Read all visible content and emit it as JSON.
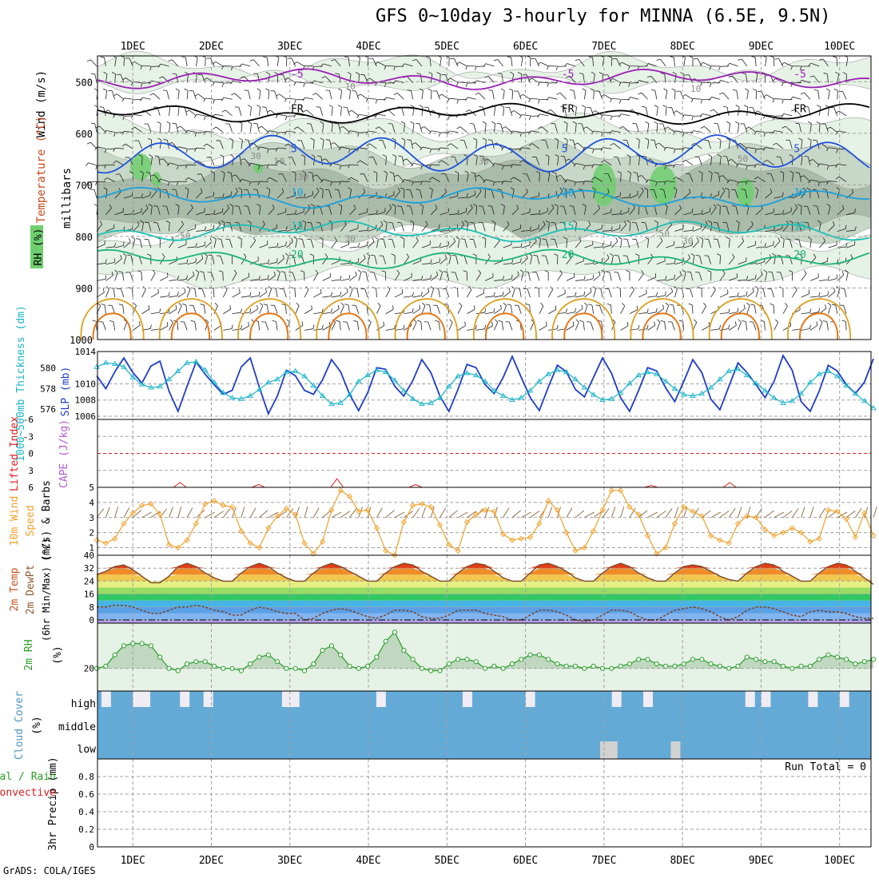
{
  "title": "GFS 0~10day 3-hourly for MINNA (6.5E, 9.5N)",
  "credit": "GrADS: COLA/IGES",
  "colors": {
    "grid": "#a0a0a0",
    "rh_light": "#e6f2e6",
    "rh_mid": "#c8d8c8",
    "rh_dark": "#a9bba9",
    "rh_wet": "#6fcf6f",
    "purple": "#9a1fb4",
    "blue": "#1e50dc",
    "cyan": "#19a0dc",
    "teal": "#19c0b4",
    "green": "#19b478",
    "gold": "#dca01e",
    "orange": "#e67814",
    "magenta": "#c8148c",
    "slp": "#1e3cc8",
    "thick": "#19b4c8",
    "li_red": "#dc1e1e",
    "wind_orange": "#f0a028",
    "barb_brown": "#8c643c",
    "rh2m": "#28a028",
    "cloud": "#64aad7",
    "cloud_clear": "#f0ecf4",
    "cloud_low": "#d2d2d2",
    "precip_green": "#28a028",
    "precip_red": "#dc1e1e"
  },
  "chart_data": [
    {
      "type": "heatmap",
      "panel": "upper-air",
      "x_ticks": [
        "1DEC",
        "2DEC",
        "3DEC",
        "4DEC",
        "5DEC",
        "6DEC",
        "7DEC",
        "8DEC",
        "9DEC",
        "10DEC"
      ],
      "ylabel": "millibars",
      "yticks": [
        "500",
        "600",
        "700",
        "800",
        "900",
        "1000"
      ],
      "ylim": [
        1000,
        450
      ],
      "left_labels": [
        "Wind (m/s)",
        "Temperature (°C)",
        "RH (%)"
      ],
      "temp_labels": [
        "-5",
        "FR",
        "5",
        "10",
        "15",
        "20"
      ],
      "rh_labels": [
        "10",
        "30",
        "50",
        "50",
        "30",
        "30",
        "10",
        "30",
        "50",
        "50",
        "30"
      ],
      "freezing_level_label": "FR",
      "isotherms": [
        {
          "label": "-5",
          "level": 495
        },
        {
          "label": "FR",
          "level": 562
        },
        {
          "label": "5",
          "level": 640
        },
        {
          "label": "10",
          "level": 725
        },
        {
          "label": "15",
          "level": 790
        },
        {
          "label": "20",
          "level": 845
        }
      ]
    },
    {
      "type": "line",
      "panel": "slp-thickness",
      "ylabel_left": "1000~500mb Thickness (dm)",
      "ylabel_right": "SLP (mb)",
      "yticks_left": [
        "580",
        "578",
        "576"
      ],
      "yticks_right": [
        "1014",
        "1010",
        "1008",
        "1006"
      ],
      "ylim_slp": [
        1005.6,
        1014
      ],
      "ylim_thick": [
        575,
        581.6
      ],
      "series": [
        {
          "name": "SLP (mb)",
          "values": [
            1011.0,
            1009.4,
            1011.5,
            1013.2,
            1011.4,
            1010.1,
            1012.2,
            1012.8,
            1009.1,
            1006.6,
            1009.7,
            1012.7,
            1011.2,
            1009.9,
            1008.7,
            1009.2,
            1012.1,
            1013.2,
            1009.6,
            1006.3,
            1008.5,
            1011.7,
            1011.0,
            1009.2,
            1008.7,
            1010.5,
            1013.0,
            1011.5,
            1008.7,
            1006.7,
            1008.9,
            1012.0,
            1011.8,
            1009.7,
            1008.5,
            1010.4,
            1013.0,
            1011.4,
            1008.5,
            1006.6,
            1009.3,
            1012.4,
            1012.0,
            1009.9,
            1008.8,
            1010.8,
            1013.4,
            1010.8,
            1008.3,
            1006.7,
            1009.6,
            1012.3,
            1011.5,
            1009.3,
            1008.4,
            1010.8,
            1013.2,
            1011.3,
            1008.3,
            1006.6,
            1009.2,
            1012.0,
            1011.6,
            1009.5,
            1007.8,
            1010.3,
            1013.0,
            1011.4,
            1008.1,
            1006.8,
            1009.7,
            1012.6,
            1011.4,
            1009.9,
            1008.3,
            1010.3,
            1013.5,
            1011.7,
            1007.8,
            1006.6,
            1009.1,
            1012.3,
            1011.6,
            1009.9,
            1008.8,
            1010.2,
            1013.1
          ]
        },
        {
          "name": "Thickness (dm)",
          "values": [
            580.1,
            580.5,
            580.4,
            580.1,
            579.1,
            578.4,
            578.1,
            578.2,
            578.9,
            579.7,
            580.5,
            580.6,
            579.8,
            578.6,
            577.6,
            577.1,
            577.0,
            577.3,
            577.9,
            578.6,
            578.9,
            579.6,
            579.7,
            579.2,
            578.3,
            577.3,
            576.5,
            576.6,
            577.4,
            578.7,
            579.3,
            579.8,
            579.6,
            578.8,
            577.8,
            577.0,
            576.5,
            576.6,
            577.1,
            578.2,
            579.2,
            579.5,
            579.3,
            578.7,
            577.8,
            577.3,
            576.9,
            577.1,
            577.8,
            578.7,
            579.4,
            579.8,
            579.6,
            578.9,
            578.1,
            577.4,
            576.9,
            577.0,
            577.6,
            578.5,
            579.3,
            579.6,
            579.4,
            578.7,
            578.0,
            577.4,
            577.3,
            577.5,
            578.1,
            578.9,
            579.7,
            579.9,
            579.3,
            578.5,
            577.8,
            577.1,
            576.6,
            576.8,
            577.5,
            578.6,
            579.4,
            579.7,
            579.2,
            578.3,
            577.5,
            576.8,
            576.1
          ]
        }
      ]
    },
    {
      "type": "line",
      "panel": "cape-li",
      "ylabel_left": "Lifted Index",
      "ylabel_right": "CAPE (J/kg)",
      "yticks": [
        "-6",
        "-3",
        "0",
        "3",
        "6"
      ],
      "ylim": [
        6,
        -6
      ],
      "cape_blips": [
        {
          "day": 1.6,
          "value": 0.5
        },
        {
          "day": 2.6,
          "value": 0.3
        },
        {
          "day": 3.6,
          "value": 0.9
        },
        {
          "day": 4.6,
          "value": 0.3
        },
        {
          "day": 7.6,
          "value": 0.2
        },
        {
          "day": 8.6,
          "value": 0.5
        }
      ]
    },
    {
      "type": "line",
      "panel": "wind10m",
      "ylabel": "10m Wind Speed (m/s) & Barbs",
      "yticks": [
        "1",
        "2",
        "3",
        "4",
        "5"
      ],
      "ylim": [
        0.5,
        5
      ],
      "series": [
        {
          "name": "10m Wind",
          "values": [
            1.5,
            1.3,
            1.6,
            2.6,
            3.3,
            3.8,
            3.9,
            3.2,
            1.2,
            1.0,
            1.5,
            2.6,
            3.9,
            4.1,
            3.8,
            3.7,
            2.1,
            1.3,
            1.0,
            2.3,
            3.1,
            3.6,
            3.2,
            1.3,
            0.6,
            1.4,
            3.5,
            4.8,
            4.4,
            3.4,
            3.5,
            2.3,
            0.8,
            0.5,
            2.7,
            3.8,
            3.9,
            3.7,
            2.5,
            1.2,
            0.8,
            2.7,
            3.2,
            3.5,
            3.4,
            1.9,
            1.5,
            1.6,
            1.7,
            2.6,
            4.1,
            3.5,
            2.0,
            0.8,
            1.0,
            2.1,
            3.5,
            4.8,
            4.8,
            3.7,
            3.2,
            1.8,
            0.6,
            1.0,
            2.6,
            3.7,
            3.4,
            3.1,
            1.8,
            1.5,
            1.3,
            2.6,
            3.1,
            3.0,
            2.2,
            1.8,
            2.0,
            2.3,
            2.0,
            1.4,
            1.6,
            3.5,
            3.4,
            2.9,
            1.7,
            3.3,
            1.8
          ]
        }
      ]
    },
    {
      "type": "area",
      "panel": "temp-dewpt",
      "ylabel": "2m Temp, 2m DewPt (6hr Min/Max) (°C)",
      "yticks": [
        "40",
        "32",
        "24",
        "16",
        "8",
        "0"
      ],
      "ylim": [
        -2,
        40
      ],
      "series": [
        {
          "name": "2m Temp",
          "values": [
            28,
            30,
            33,
            34,
            31,
            27,
            23,
            23,
            27,
            33,
            35,
            33,
            29,
            26,
            24,
            24,
            29,
            33,
            35,
            33,
            29,
            26,
            24,
            24,
            29,
            33,
            35,
            33,
            30,
            27,
            24,
            24,
            29,
            33,
            35,
            34,
            30,
            27,
            24,
            24,
            29,
            33,
            35,
            34,
            30,
            26,
            24,
            24,
            29,
            34,
            35,
            33,
            30,
            26,
            24,
            24,
            29,
            33,
            35,
            33,
            29,
            26,
            24,
            24,
            29,
            33,
            34,
            33,
            30,
            27,
            25,
            24,
            29,
            33,
            35,
            34,
            30,
            27,
            24,
            24,
            29,
            33,
            35,
            34,
            30,
            26,
            22
          ]
        },
        {
          "name": "2m DewPt",
          "values": [
            8,
            8,
            9,
            9,
            8,
            6,
            4,
            4,
            6,
            8,
            8,
            9,
            8,
            6,
            5,
            3,
            3,
            6,
            8,
            7,
            5,
            4,
            4,
            0,
            1,
            4,
            6,
            7,
            6,
            4,
            2,
            1,
            3,
            6,
            6,
            5,
            2,
            1,
            1,
            3,
            6,
            6,
            6,
            4,
            3,
            2,
            0,
            0,
            3,
            6,
            6,
            5,
            3,
            0,
            -1,
            0,
            3,
            6,
            6,
            5,
            2,
            0,
            0,
            3,
            6,
            7,
            8,
            7,
            5,
            2,
            0,
            2,
            6,
            8,
            8,
            7,
            5,
            3,
            2,
            5,
            6,
            5,
            5,
            4,
            2,
            1,
            1
          ]
        }
      ]
    },
    {
      "type": "area",
      "panel": "rh2m",
      "ylabel": "2m RH (%)",
      "yticks": [
        "20"
      ],
      "ylim": [
        10,
        40
      ],
      "series": [
        {
          "name": "2m RH",
          "values": [
            20,
            21,
            26,
            30,
            31,
            31,
            30,
            25,
            20,
            19,
            22,
            23,
            23,
            21,
            20,
            20,
            19,
            22,
            25,
            26,
            23,
            20,
            20,
            19,
            22,
            28,
            30,
            26,
            21,
            20,
            21,
            25,
            32,
            36,
            28,
            24,
            20,
            19,
            19,
            22,
            24,
            24,
            23,
            20,
            21,
            20,
            22,
            24,
            26,
            26,
            24,
            22,
            21,
            21,
            20,
            21,
            20,
            20,
            21,
            22,
            24,
            24,
            22,
            21,
            21,
            22,
            24,
            24,
            22,
            21,
            20,
            21,
            25,
            24,
            23,
            23,
            21,
            20,
            21,
            21,
            24,
            26,
            25,
            24,
            22,
            23,
            24
          ]
        }
      ]
    },
    {
      "type": "bar",
      "panel": "cloud-cover",
      "ylabel": "Cloud Cover (%)",
      "layers": [
        "high",
        "middle",
        "low"
      ],
      "high_clear_days": [
        0.6,
        1.0,
        1.1,
        1.6,
        1.9,
        2.9,
        3.0,
        4.1,
        5.2,
        6.0,
        7.1,
        7.5,
        8.8,
        9.0,
        9.6,
        10.0
      ],
      "low_cloud_days": [
        6.95,
        7.05,
        7.85
      ]
    },
    {
      "type": "bar",
      "panel": "precip",
      "ylabel": "3hr Precip (mm)",
      "legend": [
        "Total / Rain",
        "Convective"
      ],
      "yticks": [
        "0",
        "0.2",
        "0.4",
        "0.6",
        "0.8"
      ],
      "ylim": [
        0,
        1
      ],
      "run_total": "Run Total = 0",
      "values": []
    }
  ]
}
